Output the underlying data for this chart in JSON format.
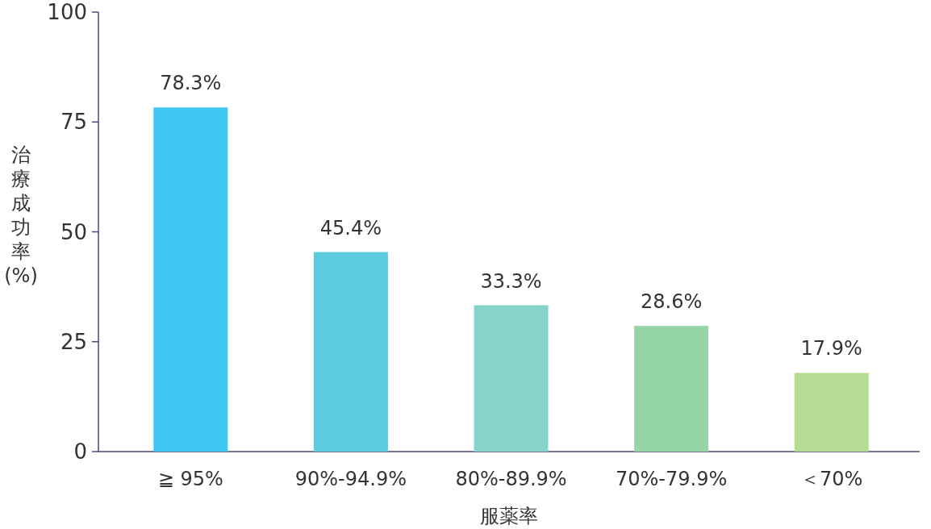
{
  "chart_data": {
    "type": "bar",
    "xlabel": "服薬率",
    "ylabel": "治療成功率(%)",
    "categories": [
      "≧ 95%",
      "90%-94.9%",
      "80%-89.9%",
      "70%-79.9%",
      "＜70%"
    ],
    "values": [
      78.3,
      45.4,
      33.3,
      28.6,
      17.9
    ],
    "colors": [
      "#3ec8f2",
      "#5ccbe0",
      "#86d3cc",
      "#96d6a6",
      "#b4dc92"
    ],
    "value_labels": [
      "78.3%",
      "45.4%",
      "33.3%",
      "28.6%",
      "17.9%"
    ],
    "ylim": [
      0,
      100
    ],
    "yticks": [
      0,
      25,
      50,
      75,
      100
    ]
  }
}
